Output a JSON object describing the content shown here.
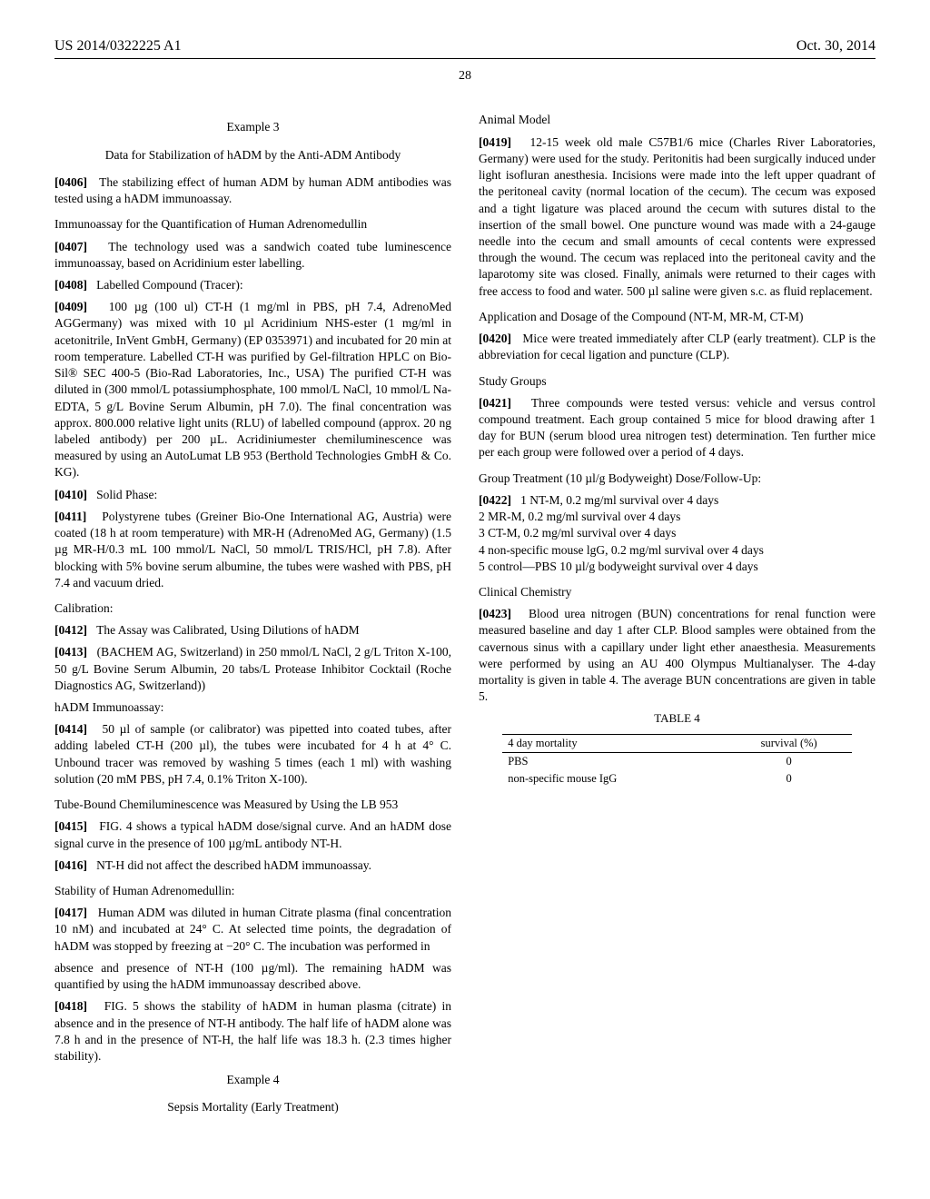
{
  "header": {
    "pub_number": "US 2014/0322225 A1",
    "date": "Oct. 30, 2014",
    "page_number": "28"
  },
  "col1": {
    "example3_label": "Example 3",
    "example3_title": "Data for Stabilization of hADM by the Anti-ADM Antibody",
    "p0406": "The stabilizing effect of human ADM by human ADM antibodies was tested using a hADM immunoassay.",
    "sub_immunoassay": "Immunoassay for the Quantification of Human Adrenomedullin",
    "p0407": "The technology used was a sandwich coated tube luminescence immunoassay, based on Acridinium ester labelling.",
    "p0408": "Labelled Compound (Tracer):",
    "p0409": "100 µg (100 ul) CT-H (1 mg/ml in PBS, pH 7.4, AdrenoMed AGGermany) was mixed with 10 µl Acridinium NHS-ester (1 mg/ml in acetonitrile, InVent GmbH, Germany) (EP 0353971) and incubated for 20 min at room temperature. Labelled CT-H was purified by Gel-filtration HPLC on Bio-Sil® SEC 400-5 (Bio-Rad Laboratories, Inc., USA) The purified CT-H was diluted in (300 mmol/L potassiumphosphate, 100 mmol/L NaCl, 10 mmol/L Na-EDTA, 5 g/L Bovine Serum Albumin, pH 7.0). The final concentration was approx. 800.000 relative light units (RLU) of labelled compound (approx. 20 ng labeled antibody) per 200 µL. Acridiniumester chemiluminescence was measured by using an AutoLumat LB 953 (Berthold Technologies GmbH & Co. KG).",
    "p0410": "Solid Phase:",
    "p0411": "Polystyrene tubes (Greiner Bio-One International AG, Austria) were coated (18 h at room temperature) with MR-H (AdrenoMed AG, Germany) (1.5 µg MR-H/0.3 mL 100 mmol/L NaCl, 50 mmol/L TRIS/HCl, pH 7.8). After blocking with 5% bovine serum albumine, the tubes were washed with PBS, pH 7.4 and vacuum dried.",
    "sub_calibration": "Calibration:",
    "p0412": "The Assay was Calibrated, Using Dilutions of hADM",
    "p0413": "(BACHEM AG, Switzerland) in 250 mmol/L NaCl, 2 g/L Triton X-100, 50 g/L Bovine Serum Albumin, 20 tabs/L Protease Inhibitor Cocktail (Roche Diagnostics AG, Switzerland))",
    "hADM_line": "hADM Immunoassay:",
    "p0414": "50 µl of sample (or calibrator) was pipetted into coated tubes, after adding labeled CT-H (200 µl), the tubes were incubated for 4 h at 4° C. Unbound tracer was removed by washing 5 times (each 1 ml) with washing solution (20 mM PBS, pH 7.4, 0.1% Triton X-100).",
    "sub_tube": "Tube-Bound Chemiluminescence was Measured by Using the LB 953",
    "p0415": "FIG. 4 shows a typical hADM dose/signal curve. And an hADM dose signal curve in the presence of 100 µg/mL antibody NT-H.",
    "p0416": "NT-H did not affect the described hADM immunoassay.",
    "sub_stability": "Stability of Human Adrenomedullin:",
    "p0417": "Human ADM was diluted in human Citrate plasma (final concentration 10 nM) and incubated at 24° C. At selected time points, the degradation of hADM was stopped by freezing at −20° C. The incubation was performed in"
  },
  "col2": {
    "p0417_cont": "absence and presence of NT-H (100 µg/ml). The remaining hADM was quantified by using the hADM immunoassay described above.",
    "p0418": "FIG. 5 shows the stability of hADM in human plasma (citrate) in absence and in the presence of NT-H antibody. The half life of hADM alone was 7.8 h and in the presence of NT-H, the half life was 18.3 h. (2.3 times higher stability).",
    "example4_label": "Example 4",
    "example4_title": "Sepsis Mortality (Early Treatment)",
    "sub_animal": "Animal Model",
    "p0419": "12-15 week old male C57B1/6 mice (Charles River Laboratories, Germany) were used for the study. Peritonitis had been surgically induced under light isofluran anesthesia. Incisions were made into the left upper quadrant of the peritoneal cavity (normal location of the cecum). The cecum was exposed and a tight ligature was placed around the cecum with sutures distal to the insertion of the small bowel. One puncture wound was made with a 24-gauge needle into the cecum and small amounts of cecal contents were expressed through the wound. The cecum was replaced into the peritoneal cavity and the laparotomy site was closed. Finally, animals were returned to their cages with free access to food and water. 500 µl saline were given s.c. as fluid replacement.",
    "sub_application": "Application and Dosage of the Compound (NT-M, MR-M, CT-M)",
    "p0420": "Mice were treated immediately after CLP (early treatment). CLP is the abbreviation for cecal ligation and puncture (CLP).",
    "sub_study": "Study Groups",
    "p0421": "Three compounds were tested versus: vehicle and versus control compound treatment. Each group contained 5 mice for blood drawing after 1 day for BUN (serum blood urea nitrogen test) determination. Ten further mice per each group were followed over a period of 4 days.",
    "sub_group": "Group Treatment (10 µl/g Bodyweight) Dose/Follow-Up:",
    "p0422": "1 NT-M, 0.2 mg/ml survival over 4 days",
    "line2": "2 MR-M, 0.2 mg/ml survival over 4 days",
    "line3": "3 CT-M, 0.2 mg/ml survival over 4 days",
    "line4": "4 non-specific mouse lgG, 0.2 mg/ml survival over 4 days",
    "line5": "5 control—PBS 10 µl/g bodyweight survival over 4 days",
    "sub_clinical": "Clinical Chemistry",
    "p0423": "Blood urea nitrogen (BUN) concentrations for renal function were measured baseline and day 1 after CLP. Blood samples were obtained from the cavernous sinus with a capillary under light ether anaesthesia. Measurements were performed by using an AU 400 Olympus Multianalyser. The 4-day mortality is given in table 4. The average BUN concentrations are given in table 5.",
    "table4_label": "TABLE 4",
    "table4": {
      "col1_header": "4 day mortality",
      "col2_header": "survival (%)",
      "rows": [
        {
          "name": "PBS",
          "survival": "0"
        },
        {
          "name": "non-specific mouse IgG",
          "survival": "0"
        }
      ]
    }
  },
  "labels": {
    "n0406": "[0406]",
    "n0407": "[0407]",
    "n0408": "[0408]",
    "n0409": "[0409]",
    "n0410": "[0410]",
    "n0411": "[0411]",
    "n0412": "[0412]",
    "n0413": "[0413]",
    "n0414": "[0414]",
    "n0415": "[0415]",
    "n0416": "[0416]",
    "n0417": "[0417]",
    "n0418": "[0418]",
    "n0419": "[0419]",
    "n0420": "[0420]",
    "n0421": "[0421]",
    "n0422": "[0422]",
    "n0423": "[0423]"
  }
}
